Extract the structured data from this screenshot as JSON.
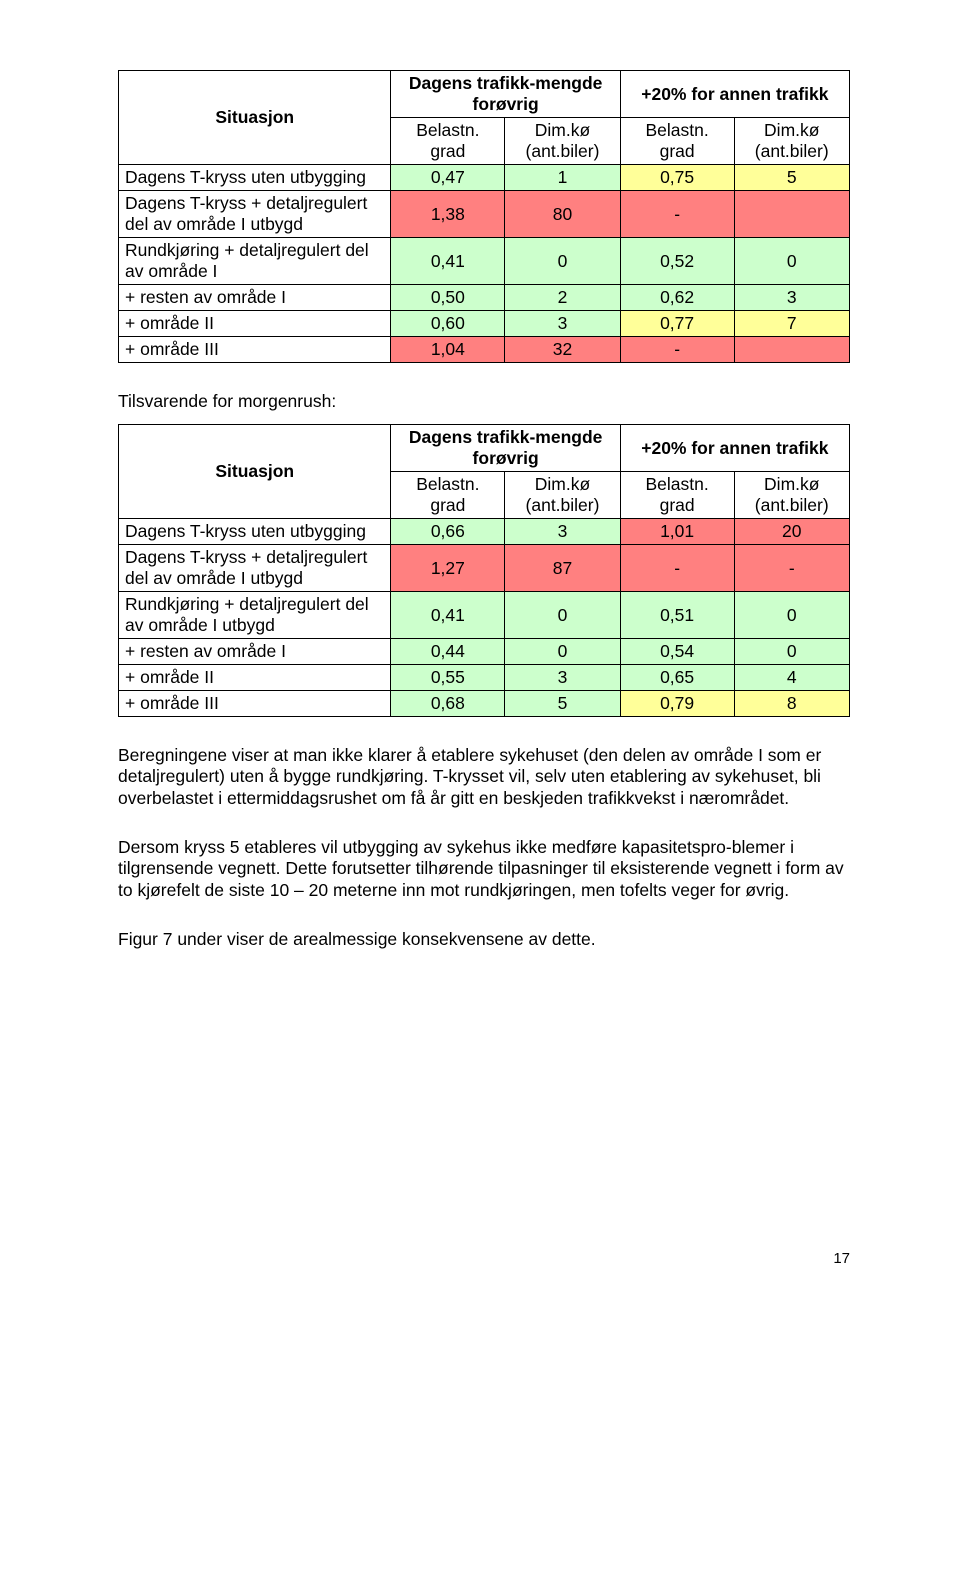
{
  "colors": {
    "green": "#ccffcc",
    "yellow": "#ffff99",
    "red": "#ff8080",
    "white": "#ffffff",
    "black": "#000000"
  },
  "table_header": {
    "situasjon": "Situasjon",
    "col_group_1": "Dagens trafikk-mengde forøvrig",
    "col_group_2": "+20% for annen trafikk",
    "sub_a": "Belastn. grad",
    "sub_b": "Dim.kø (ant.biler)"
  },
  "table1": {
    "rows": [
      {
        "label": "Dagens T-kryss uten utbygging",
        "c": [
          "0,47",
          "1",
          "0,75",
          "5"
        ],
        "colors": [
          "green",
          "green",
          "yellow",
          "yellow"
        ]
      },
      {
        "label": "Dagens T-kryss + detaljregulert del av område I utbygd",
        "c": [
          "1,38",
          "80",
          "-",
          ""
        ],
        "colors": [
          "red",
          "red",
          "red",
          "red"
        ]
      },
      {
        "label": "Rundkjøring + detaljregulert del av  område I",
        "c": [
          "0,41",
          "0",
          "0,52",
          "0"
        ],
        "colors": [
          "green",
          "green",
          "green",
          "green"
        ]
      },
      {
        "label": "+ resten av område I",
        "c": [
          "0,50",
          "2",
          "0,62",
          "3"
        ],
        "colors": [
          "green",
          "green",
          "green",
          "green"
        ]
      },
      {
        "label": "+ område II",
        "c": [
          "0,60",
          "3",
          "0,77",
          "7"
        ],
        "colors": [
          "green",
          "green",
          "yellow",
          "yellow"
        ]
      },
      {
        "label": "+ område III",
        "c": [
          "1,04",
          "32",
          "-",
          ""
        ],
        "colors": [
          "red",
          "red",
          "red",
          "red"
        ]
      }
    ]
  },
  "intertext1": "Tilsvarende for morgenrush:",
  "table2": {
    "rows": [
      {
        "label": "Dagens T-kryss uten utbygging",
        "c": [
          "0,66",
          "3",
          "1,01",
          "20"
        ],
        "colors": [
          "green",
          "green",
          "red",
          "red"
        ]
      },
      {
        "label": "Dagens T-kryss + detaljregulert del av område I utbygd",
        "c": [
          "1,27",
          "87",
          "-",
          "-"
        ],
        "colors": [
          "red",
          "red",
          "red",
          "red"
        ]
      },
      {
        "label": "Rundkjøring + detaljregulert del av område I utbygd",
        "c": [
          "0,41",
          "0",
          "0,51",
          "0"
        ],
        "colors": [
          "green",
          "green",
          "green",
          "green"
        ]
      },
      {
        "label": "+ resten av område I",
        "c": [
          "0,44",
          "0",
          "0,54",
          "0"
        ],
        "colors": [
          "green",
          "green",
          "green",
          "green"
        ]
      },
      {
        "label": "+ område II",
        "c": [
          "0,55",
          "3",
          "0,65",
          "4"
        ],
        "colors": [
          "green",
          "green",
          "green",
          "green"
        ]
      },
      {
        "label": "+ område III",
        "c": [
          "0,68",
          "5",
          "0,79",
          "8"
        ],
        "colors": [
          "green",
          "green",
          "yellow",
          "yellow"
        ]
      }
    ]
  },
  "para1": "Beregningene viser at man ikke klarer å etablere sykehuset (den delen av område I som er detaljregulert) uten å bygge rundkjøring. T-krysset vil, selv uten etablering av sykehuset, bli overbelastet i ettermiddagsrushet om få år gitt en beskjeden trafikkvekst i nærområdet.",
  "para2": "Dersom kryss 5 etableres vil utbygging av sykehus ikke medføre kapasitetspro-blemer i tilgrensende vegnett. Dette forutsetter tilhørende tilpasninger til eksisterende vegnett i form av to kjørefelt de siste 10 – 20 meterne inn mot rundkjøringen, men tofelts veger for øvrig.",
  "para3": "Figur 7 under viser de arealmessige konsekvensene av dette.",
  "page_number": "17"
}
